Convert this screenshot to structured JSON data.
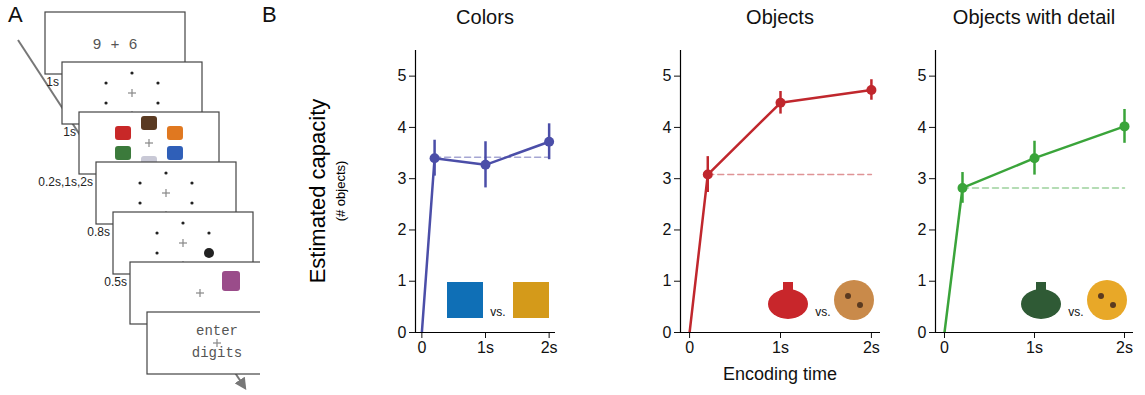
{
  "panel_labels": [
    "A",
    "B"
  ],
  "panel_a": {
    "frames": [
      {
        "text": "9 + 6",
        "duration": "1s"
      },
      {
        "duration": "1s"
      },
      {
        "duration": "0.2s,1s,2s"
      },
      {
        "duration": "0.8s"
      },
      {
        "duration": "0.5s"
      },
      {},
      {
        "text_lines": [
          "enter",
          "digits"
        ]
      }
    ]
  },
  "chart_data": [
    {
      "type": "line",
      "title": "Colors",
      "x": [
        0,
        0.2,
        1,
        2
      ],
      "values": [
        0,
        3.4,
        3.27,
        3.72
      ],
      "errors": [
        null,
        0.35,
        0.45,
        0.35
      ],
      "color": "#4b4ea8",
      "marker": "circle",
      "xlim": [
        -0.1,
        2.1
      ],
      "xticks": [
        0,
        {
          "value": 1,
          "label": "1s"
        },
        {
          "value": 2,
          "label": "2s"
        }
      ],
      "ylim": [
        0,
        5.5
      ],
      "yticks": [
        0,
        1,
        2,
        3,
        4,
        5
      ],
      "ylabel": "Estimated capacity",
      "ylabel_units": "(# objects)",
      "reference_line": {
        "y": 3.42,
        "x": [
          0.2,
          2
        ],
        "line_style": "dashed"
      },
      "inset": {
        "kind": "square",
        "colors": [
          "#0f6fb6",
          "#d49a1a"
        ],
        "text": "vs."
      }
    },
    {
      "type": "line",
      "title": "Objects",
      "x": [
        0,
        0.2,
        1,
        2
      ],
      "values": [
        0,
        3.08,
        4.48,
        4.73
      ],
      "errors": [
        null,
        0.35,
        0.22,
        0.2
      ],
      "color": "#c0272d",
      "marker": "circle",
      "xlim": [
        -0.1,
        2.1
      ],
      "xticks": [
        0,
        {
          "value": 1,
          "label": "1s"
        },
        {
          "value": 2,
          "label": "2s"
        }
      ],
      "ylim": [
        0,
        5.5
      ],
      "yticks": [
        0,
        1,
        2,
        3,
        4,
        5
      ],
      "xlabel": "Encoding time",
      "reference_line": {
        "y": 3.08,
        "x": [
          0.2,
          2
        ],
        "line_style": "dashed"
      },
      "inset": {
        "kind": "object",
        "colors": [
          "#c8262b",
          "#c98a4a"
        ],
        "text": "vs."
      }
    },
    {
      "type": "line",
      "title": "Objects with detail",
      "x": [
        0,
        0.2,
        1,
        2
      ],
      "values": [
        0,
        2.82,
        3.4,
        4.02
      ],
      "errors": [
        null,
        0.3,
        0.33,
        0.33
      ],
      "color": "#3aa43a",
      "marker": "circle",
      "xlim": [
        -0.1,
        2.1
      ],
      "xticks": [
        0,
        {
          "value": 1,
          "label": "1s"
        },
        {
          "value": 2,
          "label": "2s"
        }
      ],
      "ylim": [
        0,
        5.5
      ],
      "yticks": [
        0,
        1,
        2,
        3,
        4,
        5
      ],
      "reference_line": {
        "y": 2.82,
        "x": [
          0.2,
          2
        ],
        "line_style": "dashed"
      },
      "inset": {
        "kind": "object",
        "colors": [
          "#2f5a35",
          "#e8a828"
        ],
        "text": "vs."
      }
    }
  ]
}
